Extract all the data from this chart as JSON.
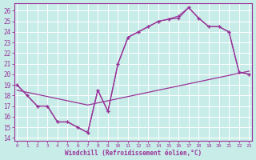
{
  "xlabel": "Windchill (Refroidissement éolien,°C)",
  "bg_color": "#c8ece8",
  "grid_color": "#ffffff",
  "line_color": "#993399",
  "ylim": [
    13.7,
    26.7
  ],
  "xlim": [
    -0.3,
    23.3
  ],
  "line1_x": [
    0,
    1,
    2,
    3,
    4,
    5,
    6,
    7,
    8,
    9,
    10,
    11,
    12,
    13,
    14,
    15,
    16,
    17,
    18,
    19,
    20,
    21,
    22,
    23
  ],
  "line1_y": [
    19,
    18,
    17,
    17,
    15.5,
    15.5,
    15,
    14.5,
    18.5,
    16.5,
    21,
    23.5,
    24,
    24.5,
    25,
    25.2,
    25.3,
    26.3,
    25.3,
    24.5,
    24.5,
    24,
    20.2,
    20
  ],
  "line2_x": [
    0,
    1,
    2,
    3,
    4,
    5,
    6,
    7,
    8,
    9,
    10,
    11,
    12,
    13,
    14,
    15,
    16,
    17,
    18,
    19,
    20,
    21,
    22,
    23
  ],
  "line2_y": [
    19,
    18,
    17,
    17,
    15.5,
    15.5,
    15,
    14.5,
    18.5,
    16.5,
    21,
    23.5,
    24,
    24.5,
    25,
    25.2,
    25.5,
    26.3,
    25.3,
    24.5,
    24.5,
    24,
    20.2,
    20
  ],
  "line3_x": [
    0,
    1,
    2,
    3,
    4,
    5,
    6,
    7,
    8,
    9,
    10,
    11,
    12,
    13,
    14,
    15,
    16,
    17,
    18,
    19,
    20,
    21,
    22,
    23
  ],
  "line3_y": [
    18.5,
    18.3,
    18.1,
    17.9,
    17.7,
    17.5,
    17.3,
    17.1,
    17.3,
    17.5,
    17.7,
    17.9,
    18.1,
    18.3,
    18.5,
    18.7,
    18.9,
    19.1,
    19.3,
    19.5,
    19.7,
    19.9,
    20.1,
    20.3
  ],
  "x_ticks": [
    0,
    1,
    2,
    3,
    4,
    5,
    6,
    7,
    8,
    9,
    10,
    11,
    12,
    13,
    14,
    15,
    16,
    17,
    18,
    19,
    20,
    21,
    22,
    23
  ],
  "y_ticks": [
    14,
    15,
    16,
    17,
    18,
    19,
    20,
    21,
    22,
    23,
    24,
    25,
    26
  ]
}
